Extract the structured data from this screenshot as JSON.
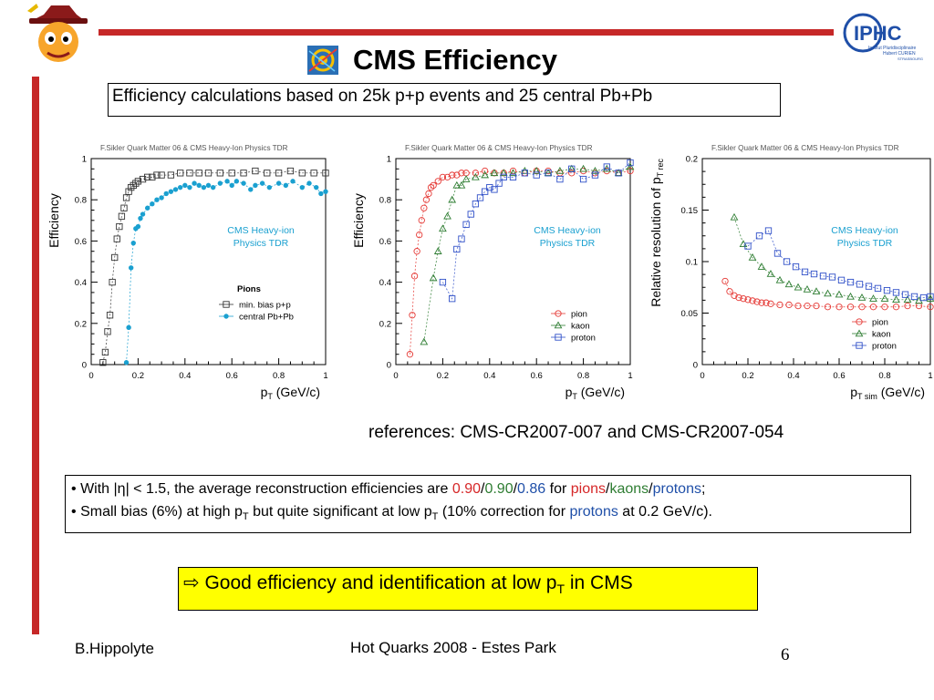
{
  "slide": {
    "title": "CMS Efficiency",
    "subtitle": "Efficiency calculations based on 25k p+p events and 25 central Pb+Pb",
    "references": "references: CMS-CR2007-007 and CMS-CR2007-054",
    "bullets": {
      "b1_pre": "With |η| < 1.5, the average reconstruction efficiencies are ",
      "b1_v_pion": "0.90",
      "b1_v_kaon": "0.90",
      "b1_v_proton": "0.86",
      "b1_for": " for ",
      "b1_pions": "pions",
      "b1_kaons": "kaons",
      "b1_protons": "protons",
      "b1_end": ";",
      "b2_a": "Small bias (6%) at high p",
      "b2_b": " but quite significant at low p",
      "b2_c": " (10% correction for ",
      "b2_protons": "protons",
      "b2_d": " at 0.2 GeV/c).",
      "T": "T",
      "slash": "/"
    },
    "conclusion_arrow": "⇨",
    "conclusion_a": " Good efficiency and identification at low p",
    "conclusion_sub": "T",
    "conclusion_b": " in CMS",
    "footer_left": "B.Hippolyte",
    "footer_center": "Hot Quarks 2008 - Estes Park",
    "page_number": "6",
    "logo_text_iphc": "IPHC",
    "logo_text_iphc_sub1": "Institut Pluridisciplinaire",
    "logo_text_iphc_sub2": "Hubert CURIEN",
    "logo_text_iphc_sub3": "STRASBOURG",
    "colors": {
      "accent_red": "#c62828",
      "pion": "#d62728",
      "kaon": "#2e7d32",
      "proton": "#1f4fa8",
      "highlight": "#ffff00"
    }
  },
  "chart_data": [
    {
      "type": "scatter",
      "header": "F.Sikler   Quark Matter 06 & CMS Heavy-Ion Physics TDR",
      "annotation": [
        "CMS Heavy-ion",
        "Physics TDR"
      ],
      "ylabel": "Efficiency",
      "xlabel_main": "p",
      "xlabel_sub": "T",
      "xlabel_unit": " (GeV/c)",
      "xlim": [
        0,
        1
      ],
      "ylim": [
        0,
        1
      ],
      "xticks": [
        0,
        0.2,
        0.4,
        0.6,
        0.8,
        1
      ],
      "yticks": [
        0,
        0.2,
        0.4,
        0.6,
        0.8,
        1
      ],
      "xtick_labels": [
        "0",
        "0.2",
        "0.4",
        "0.6",
        "0.8",
        "1"
      ],
      "ytick_labels": [
        "0",
        "0.2",
        "0.4",
        "0.6",
        "0.8",
        "1"
      ],
      "legend_title": "Pions",
      "series": [
        {
          "name": "min. bias p+p",
          "marker": "open-square",
          "color": "#333333",
          "x": [
            0.05,
            0.06,
            0.07,
            0.08,
            0.09,
            0.1,
            0.11,
            0.12,
            0.13,
            0.14,
            0.15,
            0.16,
            0.17,
            0.18,
            0.19,
            0.2,
            0.22,
            0.24,
            0.26,
            0.28,
            0.3,
            0.34,
            0.38,
            0.42,
            0.46,
            0.5,
            0.55,
            0.6,
            0.65,
            0.7,
            0.75,
            0.8,
            0.85,
            0.9,
            0.95,
            1.0
          ],
          "y": [
            0.01,
            0.06,
            0.16,
            0.24,
            0.4,
            0.52,
            0.61,
            0.67,
            0.72,
            0.76,
            0.81,
            0.84,
            0.86,
            0.87,
            0.88,
            0.89,
            0.9,
            0.91,
            0.91,
            0.92,
            0.92,
            0.92,
            0.93,
            0.93,
            0.93,
            0.93,
            0.93,
            0.93,
            0.93,
            0.94,
            0.93,
            0.93,
            0.94,
            0.93,
            0.93,
            0.93
          ]
        },
        {
          "name": "central Pb+Pb",
          "marker": "filled-circle",
          "color": "#1aa0d0",
          "x": [
            0.15,
            0.16,
            0.17,
            0.18,
            0.19,
            0.2,
            0.21,
            0.22,
            0.24,
            0.26,
            0.28,
            0.3,
            0.32,
            0.34,
            0.36,
            0.38,
            0.4,
            0.42,
            0.44,
            0.46,
            0.48,
            0.5,
            0.52,
            0.55,
            0.58,
            0.6,
            0.62,
            0.65,
            0.68,
            0.7,
            0.73,
            0.76,
            0.8,
            0.83,
            0.86,
            0.9,
            0.93,
            0.96,
            0.98,
            1.0
          ],
          "y": [
            0.01,
            0.18,
            0.47,
            0.59,
            0.66,
            0.67,
            0.71,
            0.73,
            0.76,
            0.78,
            0.8,
            0.81,
            0.83,
            0.84,
            0.85,
            0.86,
            0.87,
            0.86,
            0.88,
            0.87,
            0.86,
            0.87,
            0.86,
            0.88,
            0.89,
            0.87,
            0.89,
            0.88,
            0.85,
            0.87,
            0.88,
            0.86,
            0.88,
            0.87,
            0.89,
            0.86,
            0.88,
            0.86,
            0.83,
            0.84
          ]
        }
      ]
    },
    {
      "type": "scatter",
      "header": "F.Sikler   Quark Matter 06 & CMS Heavy-Ion Physics TDR",
      "annotation": [
        "CMS Heavy-ion",
        "Physics TDR"
      ],
      "ylabel": "Efficiency",
      "xlabel_main": "p",
      "xlabel_sub": "T",
      "xlabel_unit": " (GeV/c)",
      "xlim": [
        0,
        1
      ],
      "ylim": [
        0,
        1
      ],
      "xticks": [
        0,
        0.2,
        0.4,
        0.6,
        0.8,
        1
      ],
      "yticks": [
        0,
        0.2,
        0.4,
        0.6,
        0.8,
        1
      ],
      "xtick_labels": [
        "0",
        "0.2",
        "0.4",
        "0.6",
        "0.8",
        "1"
      ],
      "ytick_labels": [
        "0",
        "0.2",
        "0.4",
        "0.6",
        "0.8",
        "1"
      ],
      "series": [
        {
          "name": "pion",
          "marker": "open-circle",
          "color": "#e53935",
          "x": [
            0.06,
            0.07,
            0.08,
            0.09,
            0.1,
            0.11,
            0.12,
            0.13,
            0.14,
            0.15,
            0.16,
            0.18,
            0.2,
            0.22,
            0.24,
            0.26,
            0.28,
            0.3,
            0.34,
            0.38,
            0.42,
            0.46,
            0.5,
            0.55,
            0.6,
            0.65,
            0.7,
            0.75,
            0.8,
            0.85,
            0.9,
            0.95,
            1.0
          ],
          "y": [
            0.05,
            0.24,
            0.43,
            0.55,
            0.63,
            0.7,
            0.76,
            0.8,
            0.83,
            0.86,
            0.87,
            0.89,
            0.91,
            0.91,
            0.92,
            0.92,
            0.93,
            0.93,
            0.93,
            0.94,
            0.93,
            0.93,
            0.94,
            0.93,
            0.94,
            0.94,
            0.93,
            0.93,
            0.94,
            0.93,
            0.94,
            0.93,
            0.94
          ]
        },
        {
          "name": "kaon",
          "marker": "open-triangle",
          "color": "#2e7d32",
          "x": [
            0.12,
            0.16,
            0.18,
            0.2,
            0.22,
            0.24,
            0.26,
            0.28,
            0.3,
            0.34,
            0.38,
            0.42,
            0.46,
            0.5,
            0.55,
            0.6,
            0.65,
            0.7,
            0.75,
            0.8,
            0.85,
            0.9,
            0.95,
            1.0
          ],
          "y": [
            0.11,
            0.42,
            0.55,
            0.66,
            0.72,
            0.8,
            0.87,
            0.87,
            0.9,
            0.91,
            0.92,
            0.93,
            0.93,
            0.93,
            0.94,
            0.94,
            0.93,
            0.94,
            0.95,
            0.95,
            0.94,
            0.95,
            0.93,
            0.96
          ]
        },
        {
          "name": "proton",
          "marker": "open-square",
          "color": "#3050c8",
          "x": [
            0.2,
            0.24,
            0.26,
            0.28,
            0.3,
            0.32,
            0.34,
            0.36,
            0.38,
            0.4,
            0.42,
            0.44,
            0.46,
            0.5,
            0.55,
            0.6,
            0.65,
            0.7,
            0.75,
            0.8,
            0.85,
            0.9,
            0.95,
            1.0
          ],
          "y": [
            0.4,
            0.32,
            0.56,
            0.61,
            0.68,
            0.73,
            0.78,
            0.81,
            0.84,
            0.86,
            0.85,
            0.88,
            0.91,
            0.91,
            0.93,
            0.92,
            0.93,
            0.9,
            0.95,
            0.9,
            0.92,
            0.96,
            0.93,
            0.98
          ]
        }
      ]
    },
    {
      "type": "scatter",
      "header": "F.Sikler   Quark Matter 06 & CMS Heavy-Ion Physics TDR",
      "annotation": [
        "CMS Heavy-ion",
        "Physics TDR"
      ],
      "ylabel_main": "Relative resolution of p",
      "ylabel_sub": "T rec",
      "xlabel_main": "p",
      "xlabel_sub": "T sim",
      "xlabel_unit": " (GeV/c)",
      "xlim": [
        0,
        1
      ],
      "ylim": [
        0,
        0.2
      ],
      "xticks": [
        0,
        0.2,
        0.4,
        0.6,
        0.8,
        1
      ],
      "yticks": [
        0,
        0.05,
        0.1,
        0.15,
        0.2
      ],
      "xtick_labels": [
        "0",
        "0.2",
        "0.4",
        "0.6",
        "0.8",
        "1"
      ],
      "ytick_labels": [
        "0",
        "0.05",
        "0.1",
        "0.15",
        "0.2"
      ],
      "series": [
        {
          "name": "pion",
          "marker": "open-circle",
          "color": "#e53935",
          "x": [
            0.1,
            0.12,
            0.14,
            0.16,
            0.18,
            0.2,
            0.22,
            0.24,
            0.26,
            0.28,
            0.3,
            0.34,
            0.38,
            0.42,
            0.46,
            0.5,
            0.55,
            0.6,
            0.65,
            0.7,
            0.75,
            0.8,
            0.85,
            0.9,
            0.95,
            1.0
          ],
          "y": [
            0.081,
            0.071,
            0.067,
            0.065,
            0.064,
            0.063,
            0.062,
            0.061,
            0.06,
            0.06,
            0.059,
            0.058,
            0.058,
            0.057,
            0.057,
            0.057,
            0.056,
            0.056,
            0.056,
            0.056,
            0.056,
            0.056,
            0.056,
            0.057,
            0.057,
            0.056
          ]
        },
        {
          "name": "kaon",
          "marker": "open-triangle",
          "color": "#2e7d32",
          "x": [
            0.14,
            0.18,
            0.22,
            0.26,
            0.3,
            0.34,
            0.38,
            0.42,
            0.46,
            0.5,
            0.55,
            0.6,
            0.65,
            0.7,
            0.75,
            0.8,
            0.85,
            0.9,
            0.95,
            1.0
          ],
          "y": [
            0.143,
            0.117,
            0.104,
            0.095,
            0.088,
            0.082,
            0.078,
            0.075,
            0.073,
            0.071,
            0.069,
            0.068,
            0.066,
            0.065,
            0.064,
            0.064,
            0.063,
            0.063,
            0.062,
            0.064
          ]
        },
        {
          "name": "proton",
          "marker": "open-square",
          "color": "#3050c8",
          "x": [
            0.2,
            0.25,
            0.29,
            0.33,
            0.37,
            0.41,
            0.45,
            0.49,
            0.53,
            0.57,
            0.61,
            0.65,
            0.69,
            0.73,
            0.77,
            0.81,
            0.85,
            0.89,
            0.93,
            0.97,
            1.0
          ],
          "y": [
            0.115,
            0.125,
            0.13,
            0.108,
            0.1,
            0.095,
            0.09,
            0.088,
            0.086,
            0.085,
            0.082,
            0.08,
            0.078,
            0.076,
            0.074,
            0.072,
            0.07,
            0.068,
            0.066,
            0.065,
            0.066
          ]
        }
      ]
    }
  ]
}
